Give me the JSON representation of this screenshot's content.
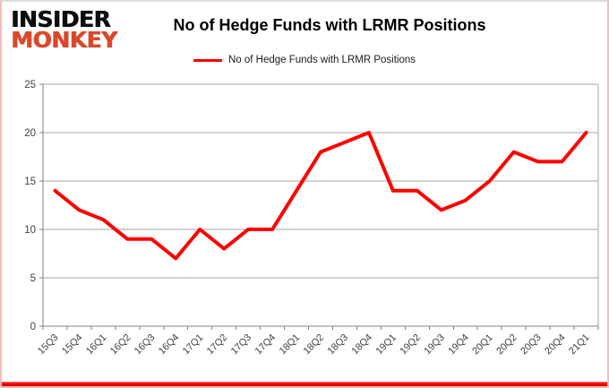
{
  "frame": {
    "border_color": "#f5bcbc",
    "bottom_bar_color": "#ff0000",
    "background": "#ffffff"
  },
  "logo": {
    "line1": "INSIDER",
    "line2": "MONKEY",
    "line1_color": "#0d0d0d",
    "line2_color": "#d9492b"
  },
  "header": {
    "title": "No of Hedge Funds with LRMR Positions"
  },
  "legend": {
    "label": "No of Hedge Funds with LRMR Positions",
    "line_color": "#ff0000"
  },
  "chart_data": {
    "type": "line",
    "title": "No of Hedge Funds with LRMR Positions",
    "categories": [
      "15Q3",
      "15Q4",
      "16Q1",
      "16Q2",
      "16Q3",
      "16Q4",
      "17Q1",
      "17Q2",
      "17Q3",
      "17Q4",
      "18Q1",
      "18Q2",
      "18Q3",
      "18Q4",
      "19Q1",
      "19Q2",
      "19Q3",
      "19Q4",
      "20Q1",
      "20Q2",
      "20Q3",
      "20Q4",
      "21Q1"
    ],
    "series": [
      {
        "name": "No of Hedge Funds with LRMR Positions",
        "color": "#ff0000",
        "values": [
          14,
          12,
          11,
          9,
          9,
          7,
          10,
          8,
          10,
          10,
          14,
          18,
          19,
          20,
          14,
          14,
          12,
          13,
          15,
          18,
          17,
          17,
          20
        ]
      }
    ],
    "xlabel": "",
    "ylabel": "",
    "ylim": [
      0,
      25
    ],
    "yticks": [
      0,
      5,
      10,
      15,
      20,
      25
    ],
    "grid": true,
    "legend_position": "top",
    "grid_color": "#a6a6a6",
    "axis_color": "#808080",
    "tick_label_color": "#3f3f3f"
  }
}
